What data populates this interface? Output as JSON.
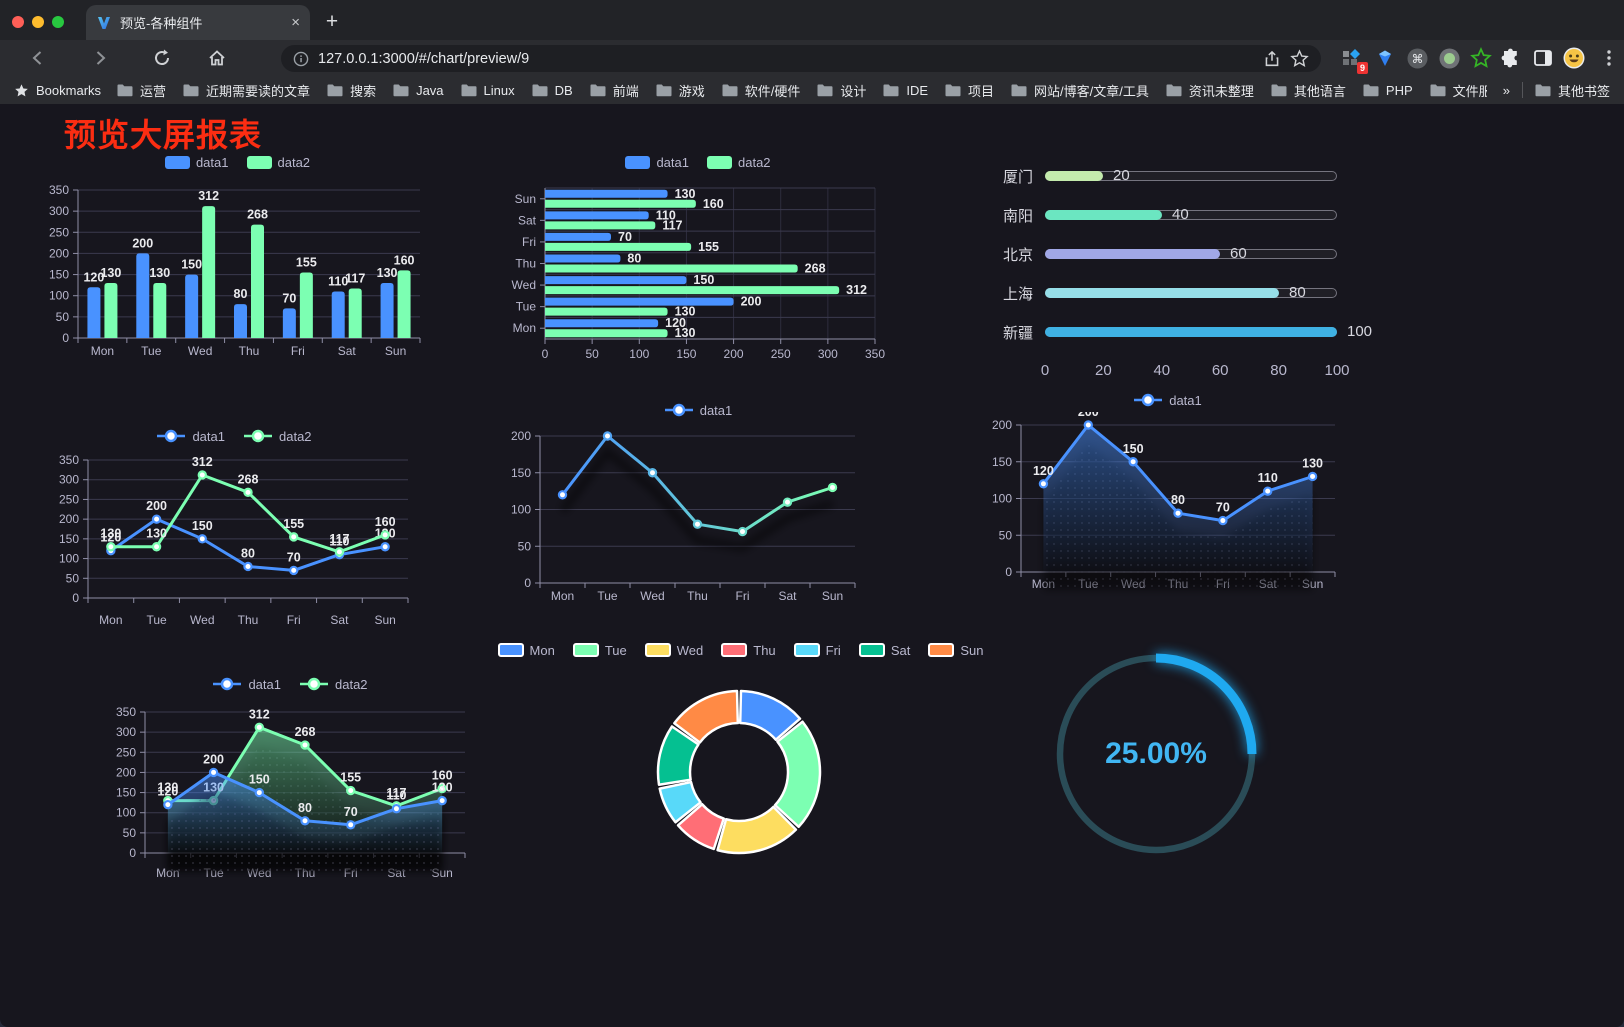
{
  "browser": {
    "tab": {
      "title": "预览-各种组件",
      "close": "×",
      "new_tab": "+"
    },
    "url": "127.0.0.1:3000/#/chart/preview/9",
    "extension_badge": "9",
    "bookmarks_bar": {
      "label": "Bookmarks",
      "folders": [
        "运营",
        "近期需要读的文章",
        "搜索",
        "Java",
        "Linux",
        "DB",
        "前端",
        "游戏",
        "软件/硬件",
        "设计",
        "IDE",
        "项目",
        "网站/博客/文章/工具",
        "资讯未整理",
        "其他语言",
        "PHP",
        "文件服务器"
      ],
      "overflow": "»",
      "other_bookmarks": "其他书签"
    }
  },
  "page": {
    "title": "预览大屏报表",
    "title_color": "#fb2d12"
  },
  "chart_data": {
    "days": [
      "Mon",
      "Tue",
      "Wed",
      "Thu",
      "Fri",
      "Sat",
      "Sun"
    ],
    "bar_grouped": {
      "type": "bar",
      "legend": [
        "data1",
        "data2"
      ],
      "categories": [
        "Mon",
        "Tue",
        "Wed",
        "Thu",
        "Fri",
        "Sat",
        "Sun"
      ],
      "series": [
        {
          "name": "data1",
          "color": "#4992ff",
          "values": [
            120,
            200,
            150,
            80,
            70,
            110,
            130
          ]
        },
        {
          "name": "data2",
          "color": "#7cffb2",
          "values": [
            130,
            130,
            312,
            268,
            155,
            117,
            160
          ]
        }
      ],
      "ylim": [
        0,
        350
      ],
      "ystep": 50
    },
    "bar_horizontal": {
      "type": "bar",
      "legend": [
        "data1",
        "data2"
      ],
      "categories_top_to_bottom": [
        "Sun",
        "Sat",
        "Fri",
        "Thu",
        "Wed",
        "Tue",
        "Mon"
      ],
      "series": [
        {
          "name": "data1",
          "color": "#4992ff",
          "values_mon_to_sun": [
            120,
            200,
            150,
            80,
            70,
            110,
            130
          ]
        },
        {
          "name": "data2",
          "color": "#7cffb2",
          "values_mon_to_sun": [
            130,
            130,
            312,
            268,
            155,
            117,
            160
          ]
        }
      ],
      "xlim": [
        0,
        350
      ],
      "xstep": 50
    },
    "progress_bars": {
      "type": "bar",
      "rows": [
        {
          "label": "厦门",
          "value": 20,
          "color": "#c4ebad"
        },
        {
          "label": "南阳",
          "value": 40,
          "color": "#6be6c1"
        },
        {
          "label": "北京",
          "value": 60,
          "color": "#a0a7e6"
        },
        {
          "label": "上海",
          "value": 80,
          "color": "#96dee8"
        },
        {
          "label": "新疆",
          "value": 100,
          "color": "#3fb1e3"
        }
      ],
      "axis_ticks": [
        0,
        20,
        40,
        60,
        80,
        100
      ],
      "max": 100
    },
    "line_dual": {
      "type": "line",
      "legend": [
        "data1",
        "data2"
      ],
      "categories": [
        "Mon",
        "Tue",
        "Wed",
        "Thu",
        "Fri",
        "Sat",
        "Sun"
      ],
      "series": [
        {
          "name": "data1",
          "color": "#4992ff",
          "values": [
            120,
            200,
            150,
            80,
            70,
            110,
            130
          ]
        },
        {
          "name": "data2",
          "color": "#7cffb2",
          "values": [
            130,
            130,
            312,
            268,
            155,
            117,
            160
          ]
        }
      ],
      "ylim": [
        0,
        350
      ],
      "ystep": 50,
      "labels": true
    },
    "line_gradient": {
      "type": "line",
      "legend": [
        "data1"
      ],
      "categories": [
        "Mon",
        "Tue",
        "Wed",
        "Thu",
        "Fri",
        "Sat",
        "Sun"
      ],
      "series": [
        {
          "name": "data1",
          "gradient": [
            "#4992ff",
            "#7cffb2"
          ],
          "values": [
            120,
            200,
            150,
            80,
            70,
            110,
            130
          ]
        }
      ],
      "ylim": [
        0,
        200
      ],
      "ystep": 50,
      "labels": false
    },
    "area_single": {
      "type": "area",
      "legend": [
        "data1"
      ],
      "categories": [
        "Mon",
        "Tue",
        "Wed",
        "Thu",
        "Fri",
        "Sat",
        "Sun"
      ],
      "series": [
        {
          "name": "data1",
          "color": "#4992ff",
          "values": [
            120,
            200,
            150,
            80,
            70,
            110,
            130
          ]
        }
      ],
      "ylim": [
        0,
        200
      ],
      "ystep": 50,
      "labels": true
    },
    "area_dual": {
      "type": "area",
      "legend": [
        "data1",
        "data2"
      ],
      "categories": [
        "Mon",
        "Tue",
        "Wed",
        "Thu",
        "Fri",
        "Sat",
        "Sun"
      ],
      "series": [
        {
          "name": "data1",
          "color": "#4992ff",
          "values": [
            120,
            200,
            150,
            80,
            70,
            110,
            130
          ]
        },
        {
          "name": "data2",
          "color": "#7cffb2",
          "values": [
            130,
            130,
            312,
            268,
            155,
            117,
            160
          ]
        }
      ],
      "ylim": [
        0,
        350
      ],
      "ystep": 50,
      "labels": true
    },
    "donut": {
      "type": "pie",
      "legend": [
        "Mon",
        "Tue",
        "Wed",
        "Thu",
        "Fri",
        "Sat",
        "Sun"
      ],
      "values": [
        120,
        200,
        150,
        80,
        70,
        110,
        130
      ],
      "colors": [
        "#4992ff",
        "#7cffb2",
        "#fddd60",
        "#ff6e76",
        "#58d9f9",
        "#05c091",
        "#ff8a45"
      ]
    },
    "gauge": {
      "type": "gauge",
      "value": 25,
      "label": "25.00%",
      "color": "#1fa9f0",
      "track_color": "#2a4c57"
    }
  }
}
